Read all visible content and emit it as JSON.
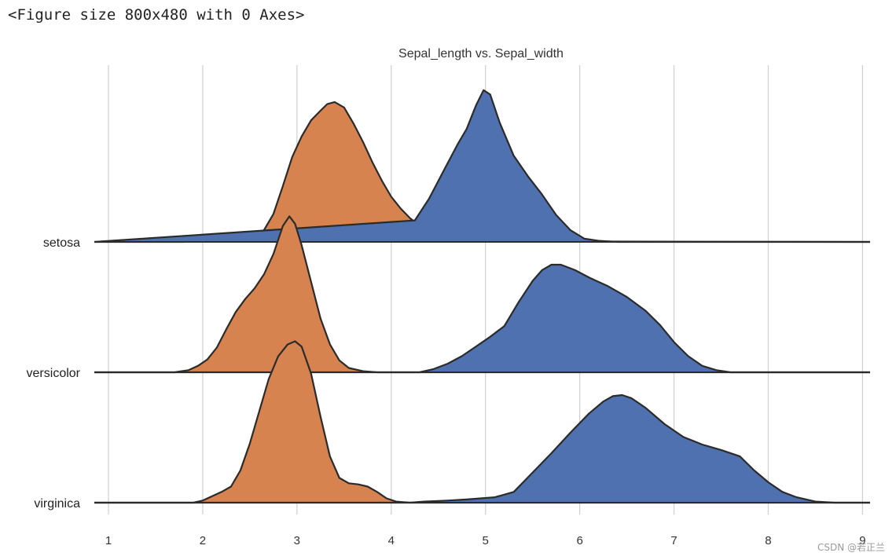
{
  "notebook": {
    "output_text": "<Figure size 800x480 with 0 Axes>"
  },
  "watermark": "CSDN @若正兰",
  "chart_data": {
    "type": "area",
    "subtype": "ridgeline",
    "title": "Sepal_length vs. Sepal_width",
    "xlabel": "",
    "ylabel": "",
    "xlim": [
      0.85,
      9.08
    ],
    "xticks": [
      1,
      2,
      3,
      4,
      5,
      6,
      7,
      8,
      9
    ],
    "grid": "vertical",
    "categories": [
      "setosa",
      "versicolor",
      "virginica"
    ],
    "colors": {
      "Sepal_width": "#D6834F",
      "Sepal_length": "#4F71AF",
      "outline": "#2b2b2b",
      "grid": "#cfcfcf"
    },
    "legend": "none",
    "series": [
      {
        "name": "Sepal_width",
        "curves": [
          {
            "category": "setosa",
            "points": [
              [
                0.85,
                0
              ],
              [
                1.8,
                0
              ],
              [
                2.0,
                0.01
              ],
              [
                2.15,
                0.04
              ],
              [
                2.3,
                0.05
              ],
              [
                2.45,
                0.03
              ],
              [
                2.55,
                0.04
              ],
              [
                2.65,
                0.11
              ],
              [
                2.75,
                0.26
              ],
              [
                2.85,
                0.52
              ],
              [
                2.95,
                0.79
              ],
              [
                3.05,
                0.98
              ],
              [
                3.15,
                1.13
              ],
              [
                3.25,
                1.22
              ],
              [
                3.32,
                1.28
              ],
              [
                3.4,
                1.3
              ],
              [
                3.5,
                1.25
              ],
              [
                3.6,
                1.1
              ],
              [
                3.7,
                0.93
              ],
              [
                3.8,
                0.74
              ],
              [
                3.9,
                0.57
              ],
              [
                4.0,
                0.42
              ],
              [
                4.1,
                0.31
              ],
              [
                4.2,
                0.22
              ],
              [
                4.3,
                0.15
              ],
              [
                4.4,
                0.1
              ],
              [
                4.55,
                0.05
              ],
              [
                4.7,
                0.02
              ],
              [
                4.85,
                0.005
              ],
              [
                9.08,
                0
              ]
            ]
          },
          {
            "category": "versicolor",
            "points": [
              [
                0.85,
                0
              ],
              [
                1.7,
                0
              ],
              [
                1.85,
                0.02
              ],
              [
                1.95,
                0.06
              ],
              [
                2.05,
                0.12
              ],
              [
                2.15,
                0.23
              ],
              [
                2.25,
                0.4
              ],
              [
                2.35,
                0.56
              ],
              [
                2.45,
                0.68
              ],
              [
                2.55,
                0.78
              ],
              [
                2.65,
                0.91
              ],
              [
                2.75,
                1.1
              ],
              [
                2.85,
                1.36
              ],
              [
                2.92,
                1.45
              ],
              [
                2.98,
                1.38
              ],
              [
                3.05,
                1.18
              ],
              [
                3.15,
                0.84
              ],
              [
                3.25,
                0.5
              ],
              [
                3.35,
                0.26
              ],
              [
                3.45,
                0.11
              ],
              [
                3.55,
                0.04
              ],
              [
                3.7,
                0.01
              ],
              [
                3.85,
                0
              ],
              [
                9.08,
                0
              ]
            ]
          },
          {
            "category": "virginica",
            "points": [
              [
                0.85,
                0
              ],
              [
                1.9,
                0
              ],
              [
                2.0,
                0.02
              ],
              [
                2.1,
                0.06
              ],
              [
                2.2,
                0.1
              ],
              [
                2.3,
                0.15
              ],
              [
                2.4,
                0.3
              ],
              [
                2.5,
                0.55
              ],
              [
                2.6,
                0.85
              ],
              [
                2.7,
                1.15
              ],
              [
                2.8,
                1.36
              ],
              [
                2.9,
                1.47
              ],
              [
                2.98,
                1.5
              ],
              [
                3.05,
                1.45
              ],
              [
                3.15,
                1.2
              ],
              [
                3.25,
                0.8
              ],
              [
                3.35,
                0.43
              ],
              [
                3.45,
                0.23
              ],
              [
                3.55,
                0.18
              ],
              [
                3.65,
                0.17
              ],
              [
                3.75,
                0.15
              ],
              [
                3.85,
                0.1
              ],
              [
                3.95,
                0.04
              ],
              [
                4.05,
                0.01
              ],
              [
                4.2,
                0
              ],
              [
                9.08,
                0
              ]
            ]
          }
        ]
      },
      {
        "name": "Sepal_length",
        "curves": [
          {
            "category": "setosa",
            "points": [
              [
                0.85,
                0
              ],
              [
                4.25,
                0.2
              ],
              [
                4.4,
                0.4
              ],
              [
                4.55,
                0.65
              ],
              [
                4.7,
                0.9
              ],
              [
                4.8,
                1.05
              ],
              [
                4.9,
                1.27
              ],
              [
                4.98,
                1.41
              ],
              [
                5.05,
                1.37
              ],
              [
                5.15,
                1.11
              ],
              [
                5.3,
                0.8
              ],
              [
                5.45,
                0.61
              ],
              [
                5.6,
                0.44
              ],
              [
                5.75,
                0.25
              ],
              [
                5.9,
                0.11
              ],
              [
                6.05,
                0.03
              ],
              [
                6.2,
                0.01
              ],
              [
                6.4,
                0
              ],
              [
                9.08,
                0
              ]
            ]
          },
          {
            "category": "versicolor",
            "points": [
              [
                0.85,
                0
              ],
              [
                4.3,
                0
              ],
              [
                4.45,
                0.03
              ],
              [
                4.6,
                0.08
              ],
              [
                4.75,
                0.15
              ],
              [
                4.9,
                0.24
              ],
              [
                5.05,
                0.33
              ],
              [
                5.2,
                0.43
              ],
              [
                5.35,
                0.65
              ],
              [
                5.5,
                0.85
              ],
              [
                5.6,
                0.95
              ],
              [
                5.7,
                1.0
              ],
              [
                5.8,
                1.0
              ],
              [
                5.95,
                0.95
              ],
              [
                6.1,
                0.88
              ],
              [
                6.3,
                0.8
              ],
              [
                6.5,
                0.7
              ],
              [
                6.7,
                0.57
              ],
              [
                6.85,
                0.44
              ],
              [
                7.0,
                0.28
              ],
              [
                7.15,
                0.15
              ],
              [
                7.3,
                0.06
              ],
              [
                7.45,
                0.02
              ],
              [
                7.6,
                0
              ],
              [
                9.08,
                0
              ]
            ]
          },
          {
            "category": "virginica",
            "points": [
              [
                0.85,
                0
              ],
              [
                4.2,
                0
              ],
              [
                4.35,
                0.01
              ],
              [
                4.6,
                0.02
              ],
              [
                4.8,
                0.03
              ],
              [
                5.1,
                0.05
              ],
              [
                5.3,
                0.1
              ],
              [
                5.5,
                0.28
              ],
              [
                5.7,
                0.46
              ],
              [
                5.9,
                0.65
              ],
              [
                6.1,
                0.83
              ],
              [
                6.25,
                0.94
              ],
              [
                6.35,
                0.99
              ],
              [
                6.45,
                1.0
              ],
              [
                6.55,
                0.97
              ],
              [
                6.7,
                0.88
              ],
              [
                6.9,
                0.73
              ],
              [
                7.1,
                0.61
              ],
              [
                7.3,
                0.54
              ],
              [
                7.5,
                0.49
              ],
              [
                7.7,
                0.43
              ],
              [
                7.85,
                0.3
              ],
              [
                8.0,
                0.19
              ],
              [
                8.15,
                0.1
              ],
              [
                8.3,
                0.05
              ],
              [
                8.5,
                0.01
              ],
              [
                8.7,
                0
              ],
              [
                9.08,
                0
              ]
            ]
          }
        ]
      }
    ]
  }
}
